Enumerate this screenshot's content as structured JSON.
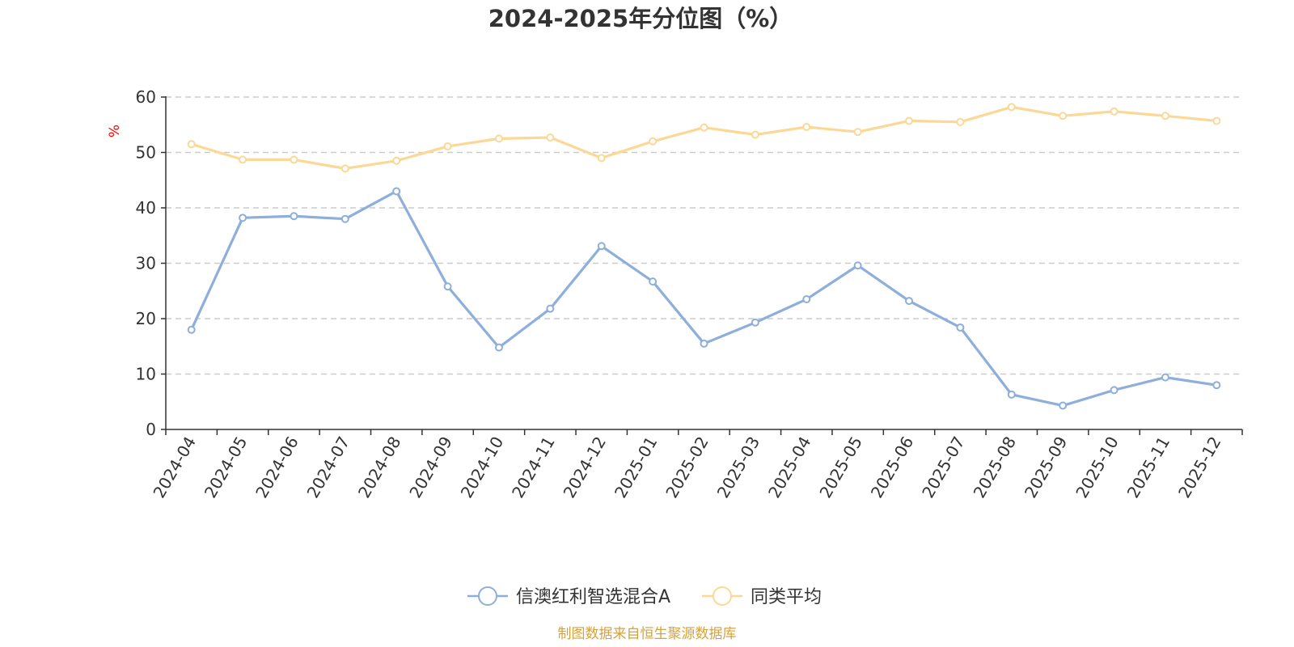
{
  "chart_data": {
    "type": "line",
    "title": "2024-2025年分位图（%）",
    "ylabel": "%",
    "xlabel": "",
    "ylim": [
      0,
      60
    ],
    "yticks": [
      0,
      10,
      20,
      30,
      40,
      50,
      60
    ],
    "grid": true,
    "categories": [
      "2024-04",
      "2024-05",
      "2024-06",
      "2024-07",
      "2024-08",
      "2024-09",
      "2024-10",
      "2024-11",
      "2024-12",
      "2025-01",
      "2025-02",
      "2025-03",
      "2025-04",
      "2025-05",
      "2025-06",
      "2025-07",
      "2025-08",
      "2025-09",
      "2025-10",
      "2025-11",
      "2025-12"
    ],
    "series": [
      {
        "name": "信澳红利智选混合A",
        "color": "#8eaedb",
        "values": [
          18.0,
          38.2,
          38.5,
          38.0,
          43.0,
          25.8,
          14.8,
          21.8,
          33.1,
          26.7,
          15.5,
          19.3,
          23.5,
          29.6,
          23.2,
          18.4,
          6.3,
          4.3,
          7.1,
          9.4,
          8.0
        ]
      },
      {
        "name": "同类平均",
        "color": "#fcd896",
        "values": [
          51.5,
          48.7,
          48.7,
          47.1,
          48.5,
          51.1,
          52.5,
          52.7,
          49.0,
          52.0,
          54.5,
          53.2,
          54.6,
          53.7,
          55.7,
          55.5,
          58.2,
          56.6,
          57.4,
          56.6,
          55.7
        ]
      }
    ],
    "legend_position": "bottom-center",
    "source": "制图数据来自恒生聚源数据库",
    "source_color": "#d6a23c",
    "ylabel_color": "#ff0000"
  }
}
